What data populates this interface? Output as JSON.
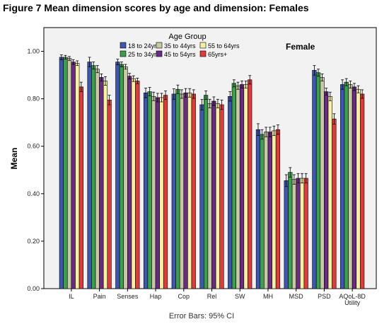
{
  "figure_title": "Figure 7 Mean dimension scores by age and dimension: Females",
  "chart_data": {
    "type": "bar",
    "annotation": "Female",
    "ylabel": "Mean",
    "xlabel": "",
    "footnote": "Error Bars: 95% CI",
    "ylim": [
      0,
      1.1
    ],
    "yticks": [
      "0.00",
      "0.20",
      "0.40",
      "0.60",
      "0.80",
      "1.00"
    ],
    "ytick_values": [
      0,
      0.2,
      0.4,
      0.6,
      0.8,
      1.0
    ],
    "categories": [
      "IL",
      "Pain",
      "Senses",
      "Hap",
      "Cop",
      "Rel",
      "SW",
      "MH",
      "MSD",
      "PSD",
      "AQoL-8D Utility"
    ],
    "legend": {
      "title": "Age Group",
      "placement": "top-center"
    },
    "series": [
      {
        "name": "18 to 24yrs",
        "color": "#3d56b0",
        "values": [
          0.975,
          0.955,
          0.955,
          0.825,
          0.82,
          0.775,
          0.81,
          0.67,
          0.455,
          0.92,
          0.86
        ],
        "err": [
          0.01,
          0.02,
          0.012,
          0.02,
          0.022,
          0.022,
          0.02,
          0.025,
          0.025,
          0.02,
          0.02
        ]
      },
      {
        "name": "25 to 34yrs",
        "color": "#3aa04a",
        "values": [
          0.975,
          0.94,
          0.945,
          0.83,
          0.84,
          0.815,
          0.865,
          0.65,
          0.49,
          0.91,
          0.87
        ],
        "err": [
          0.008,
          0.015,
          0.01,
          0.018,
          0.018,
          0.018,
          0.015,
          0.02,
          0.02,
          0.015,
          0.015
        ]
      },
      {
        "name": "35 to 44yrs",
        "color": "#c8c8a5",
        "values": [
          0.97,
          0.925,
          0.935,
          0.81,
          0.82,
          0.78,
          0.855,
          0.66,
          0.46,
          0.89,
          0.86
        ],
        "err": [
          0.008,
          0.015,
          0.01,
          0.018,
          0.018,
          0.018,
          0.015,
          0.02,
          0.02,
          0.015,
          0.015
        ]
      },
      {
        "name": "45 to 54yrs",
        "color": "#6a2a86",
        "values": [
          0.955,
          0.89,
          0.895,
          0.805,
          0.825,
          0.79,
          0.86,
          0.66,
          0.465,
          0.83,
          0.85
        ],
        "err": [
          0.01,
          0.015,
          0.012,
          0.018,
          0.018,
          0.018,
          0.015,
          0.02,
          0.02,
          0.015,
          0.015
        ]
      },
      {
        "name": "55 to 64yrs",
        "color": "#f4f2a0",
        "values": [
          0.95,
          0.875,
          0.885,
          0.805,
          0.825,
          0.78,
          0.86,
          0.665,
          0.465,
          0.81,
          0.84
        ],
        "err": [
          0.01,
          0.018,
          0.012,
          0.018,
          0.018,
          0.018,
          0.015,
          0.02,
          0.02,
          0.018,
          0.015
        ]
      },
      {
        "name": "65yrs+",
        "color": "#e03a3a",
        "values": [
          0.85,
          0.795,
          0.875,
          0.815,
          0.82,
          0.775,
          0.88,
          0.67,
          0.465,
          0.715,
          0.82
        ],
        "err": [
          0.02,
          0.02,
          0.012,
          0.018,
          0.018,
          0.02,
          0.018,
          0.02,
          0.02,
          0.022,
          0.018
        ]
      }
    ]
  }
}
